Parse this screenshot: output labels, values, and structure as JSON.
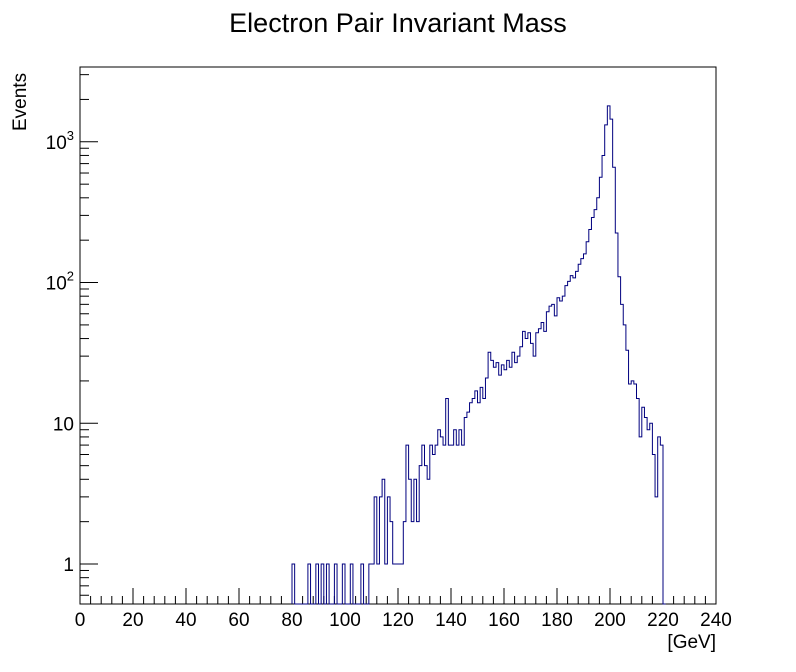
{
  "chart_data": {
    "type": "histogram",
    "title": "Electron Pair Invariant Mass",
    "xlabel": "[GeV]",
    "ylabel": "Events",
    "xlim": [
      0,
      240
    ],
    "ylim": [
      0.52,
      3400
    ],
    "yscale": "log",
    "grid": false,
    "legend": "none",
    "line_color": "#00007f",
    "bin_width": 1,
    "x_ticks": [
      "0",
      "20",
      "40",
      "60",
      "80",
      "100",
      "120",
      "140",
      "160",
      "180",
      "200",
      "220",
      "240"
    ],
    "y_ticks": [
      {
        "value": 1,
        "label": "1"
      },
      {
        "value": 10,
        "label": "10"
      },
      {
        "value": 100,
        "label": "10",
        "exp": "2"
      },
      {
        "value": 1000,
        "label": "10",
        "exp": "3"
      }
    ],
    "bins": [
      {
        "x": 80,
        "y": 1
      },
      {
        "x": 81,
        "y": 0
      },
      {
        "x": 82,
        "y": 0
      },
      {
        "x": 83,
        "y": 0
      },
      {
        "x": 84,
        "y": 0
      },
      {
        "x": 85,
        "y": 0
      },
      {
        "x": 86,
        "y": 1
      },
      {
        "x": 87,
        "y": 0
      },
      {
        "x": 88,
        "y": 0
      },
      {
        "x": 89,
        "y": 1
      },
      {
        "x": 90,
        "y": 0
      },
      {
        "x": 91,
        "y": 1
      },
      {
        "x": 92,
        "y": 0
      },
      {
        "x": 93,
        "y": 1
      },
      {
        "x": 94,
        "y": 0
      },
      {
        "x": 95,
        "y": 0
      },
      {
        "x": 96,
        "y": 1
      },
      {
        "x": 97,
        "y": 0
      },
      {
        "x": 98,
        "y": 0
      },
      {
        "x": 99,
        "y": 1
      },
      {
        "x": 100,
        "y": 0
      },
      {
        "x": 101,
        "y": 0
      },
      {
        "x": 102,
        "y": 1
      },
      {
        "x": 103,
        "y": 0
      },
      {
        "x": 104,
        "y": 0
      },
      {
        "x": 105,
        "y": 0
      },
      {
        "x": 106,
        "y": 1
      },
      {
        "x": 107,
        "y": 0
      },
      {
        "x": 108,
        "y": 0
      },
      {
        "x": 109,
        "y": 1
      },
      {
        "x": 110,
        "y": 1
      },
      {
        "x": 111,
        "y": 3
      },
      {
        "x": 112,
        "y": 1
      },
      {
        "x": 113,
        "y": 3
      },
      {
        "x": 114,
        "y": 4
      },
      {
        "x": 115,
        "y": 1
      },
      {
        "x": 116,
        "y": 3
      },
      {
        "x": 117,
        "y": 2
      },
      {
        "x": 118,
        "y": 1
      },
      {
        "x": 119,
        "y": 1
      },
      {
        "x": 120,
        "y": 1
      },
      {
        "x": 121,
        "y": 1
      },
      {
        "x": 122,
        "y": 2
      },
      {
        "x": 123,
        "y": 7
      },
      {
        "x": 124,
        "y": 4
      },
      {
        "x": 125,
        "y": 2
      },
      {
        "x": 126,
        "y": 4
      },
      {
        "x": 127,
        "y": 2
      },
      {
        "x": 128,
        "y": 5
      },
      {
        "x": 129,
        "y": 7
      },
      {
        "x": 130,
        "y": 5
      },
      {
        "x": 131,
        "y": 4
      },
      {
        "x": 132,
        "y": 7
      },
      {
        "x": 133,
        "y": 6
      },
      {
        "x": 134,
        "y": 7
      },
      {
        "x": 135,
        "y": 9
      },
      {
        "x": 136,
        "y": 8
      },
      {
        "x": 137,
        "y": 7
      },
      {
        "x": 138,
        "y": 15
      },
      {
        "x": 139,
        "y": 7
      },
      {
        "x": 140,
        "y": 7
      },
      {
        "x": 141,
        "y": 9
      },
      {
        "x": 142,
        "y": 7
      },
      {
        "x": 143,
        "y": 9
      },
      {
        "x": 144,
        "y": 7
      },
      {
        "x": 145,
        "y": 11
      },
      {
        "x": 146,
        "y": 12
      },
      {
        "x": 147,
        "y": 14
      },
      {
        "x": 148,
        "y": 15
      },
      {
        "x": 149,
        "y": 17
      },
      {
        "x": 150,
        "y": 14
      },
      {
        "x": 151,
        "y": 18
      },
      {
        "x": 152,
        "y": 15
      },
      {
        "x": 153,
        "y": 21
      },
      {
        "x": 154,
        "y": 32
      },
      {
        "x": 155,
        "y": 28
      },
      {
        "x": 156,
        "y": 25
      },
      {
        "x": 157,
        "y": 27
      },
      {
        "x": 158,
        "y": 22
      },
      {
        "x": 159,
        "y": 26
      },
      {
        "x": 160,
        "y": 24
      },
      {
        "x": 161,
        "y": 28
      },
      {
        "x": 162,
        "y": 25
      },
      {
        "x": 163,
        "y": 32
      },
      {
        "x": 164,
        "y": 27
      },
      {
        "x": 165,
        "y": 30
      },
      {
        "x": 166,
        "y": 35
      },
      {
        "x": 167,
        "y": 45
      },
      {
        "x": 168,
        "y": 40
      },
      {
        "x": 169,
        "y": 44
      },
      {
        "x": 170,
        "y": 37
      },
      {
        "x": 171,
        "y": 30
      },
      {
        "x": 172,
        "y": 44
      },
      {
        "x": 173,
        "y": 47
      },
      {
        "x": 174,
        "y": 52
      },
      {
        "x": 175,
        "y": 45
      },
      {
        "x": 176,
        "y": 62
      },
      {
        "x": 177,
        "y": 68
      },
      {
        "x": 178,
        "y": 70
      },
      {
        "x": 179,
        "y": 58
      },
      {
        "x": 180,
        "y": 78
      },
      {
        "x": 181,
        "y": 74
      },
      {
        "x": 182,
        "y": 80
      },
      {
        "x": 183,
        "y": 95
      },
      {
        "x": 184,
        "y": 102
      },
      {
        "x": 185,
        "y": 112
      },
      {
        "x": 186,
        "y": 108
      },
      {
        "x": 187,
        "y": 120
      },
      {
        "x": 188,
        "y": 135
      },
      {
        "x": 189,
        "y": 148
      },
      {
        "x": 190,
        "y": 160
      },
      {
        "x": 191,
        "y": 195
      },
      {
        "x": 192,
        "y": 238
      },
      {
        "x": 193,
        "y": 290
      },
      {
        "x": 194,
        "y": 330
      },
      {
        "x": 195,
        "y": 400
      },
      {
        "x": 196,
        "y": 560
      },
      {
        "x": 197,
        "y": 800
      },
      {
        "x": 198,
        "y": 1320
      },
      {
        "x": 199,
        "y": 1800
      },
      {
        "x": 200,
        "y": 1450
      },
      {
        "x": 201,
        "y": 660
      },
      {
        "x": 202,
        "y": 225
      },
      {
        "x": 203,
        "y": 110
      },
      {
        "x": 204,
        "y": 70
      },
      {
        "x": 205,
        "y": 50
      },
      {
        "x": 206,
        "y": 33
      },
      {
        "x": 207,
        "y": 19
      },
      {
        "x": 208,
        "y": 20
      },
      {
        "x": 209,
        "y": 19
      },
      {
        "x": 210,
        "y": 15
      },
      {
        "x": 211,
        "y": 8
      },
      {
        "x": 212,
        "y": 13
      },
      {
        "x": 213,
        "y": 11
      },
      {
        "x": 214,
        "y": 9
      },
      {
        "x": 215,
        "y": 10
      },
      {
        "x": 216,
        "y": 6
      },
      {
        "x": 217,
        "y": 3
      },
      {
        "x": 218,
        "y": 8
      },
      {
        "x": 219,
        "y": 7
      },
      {
        "x": 220,
        "y": 0
      }
    ]
  }
}
